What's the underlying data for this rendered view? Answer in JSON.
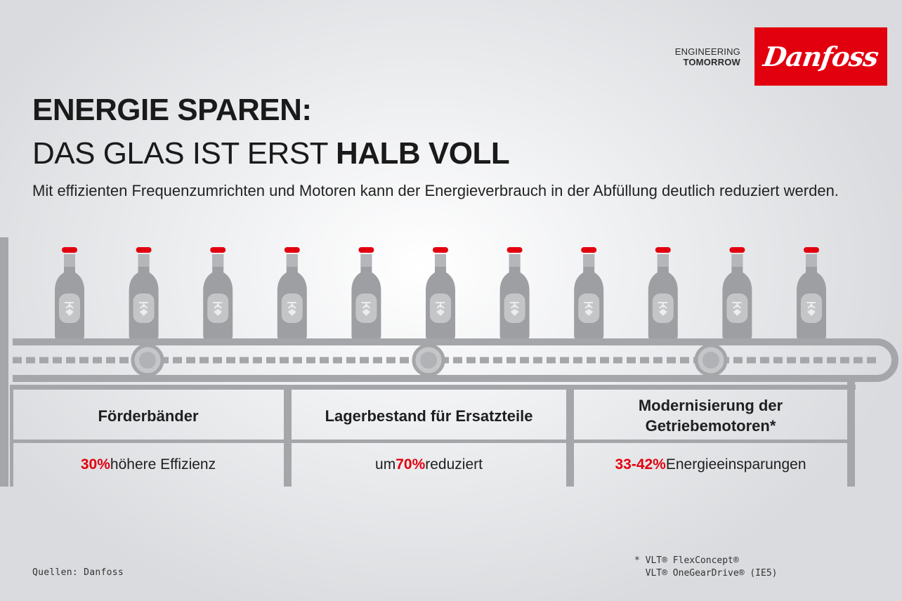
{
  "brand": {
    "tagline_line1": "ENGINEERING",
    "tagline_line2": "TOMORROW",
    "logo_text": "Danfoss",
    "accent_color": "#e2000f"
  },
  "header": {
    "title_line1": "ENERGIE SPAREN:",
    "title_line2_light": "DAS GLAS IST ERST ",
    "title_line2_bold": "HALB VOLL",
    "subtitle": "Mit effizienten Frequenzumrichten und Motoren kann der Energieverbrauch in der Abfüllung deutlich reduziert werden."
  },
  "stats": [
    {
      "title": "Förderbänder",
      "prefix": "",
      "highlight": "30%",
      "suffix": " höhere Effizienz"
    },
    {
      "title": "Lagerbestand für Ersatzteile",
      "prefix": "um ",
      "highlight": "70%",
      "suffix": " reduziert"
    },
    {
      "title": "Modernisierung der Getriebemotoren*",
      "prefix": "",
      "highlight": "33-42%",
      "suffix": " Energieeinsparungen"
    }
  ],
  "footer": {
    "source": "Quellen: Danfoss",
    "footnote_line1": "* VLT® FlexConcept®",
    "footnote_line2": "  VLT® OneGearDrive® (IE5)"
  },
  "illustration": {
    "bottle_count": 11,
    "bottle_color": "#9d9fa2",
    "cap_color": "#e2000f",
    "belt_color": "#a4a6a9"
  }
}
